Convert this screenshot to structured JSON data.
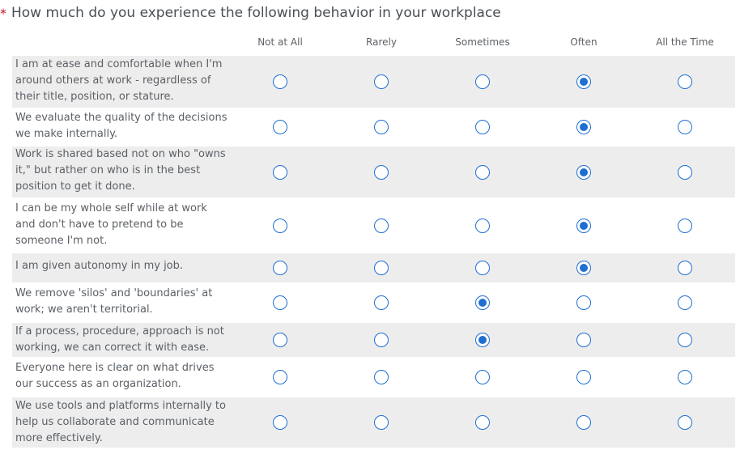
{
  "question": {
    "required_marker": "*",
    "text": "How much do you experience the following behavior in your workplace"
  },
  "columns": [
    "Not at All",
    "Rarely",
    "Sometimes",
    "Often",
    "All the Time"
  ],
  "rows": [
    {
      "label": "I am at ease and comfortable when I'm around others at work - regardless of their title, position, or stature.",
      "selected": "Often"
    },
    {
      "label": "We evaluate the quality of the decisions we make internally.",
      "selected": "Often"
    },
    {
      "label": "Work is shared based not on who \"owns it,\" but rather on who is in the best position to get it done.",
      "selected": "Often"
    },
    {
      "label": "I can be my whole self while at work and don't have to pretend to be someone I'm not.",
      "selected": "Often"
    },
    {
      "label": "I am given autonomy in my job.",
      "selected": "Often"
    },
    {
      "label": "We remove 'silos' and 'boundaries' at work; we aren't territorial.",
      "selected": "Sometimes"
    },
    {
      "label": "If a process, procedure, approach is not working, we can correct it with ease.",
      "selected": "Sometimes"
    },
    {
      "label": "Everyone here is clear on what drives our success as an organization.",
      "selected": null
    },
    {
      "label": "We use tools and platforms internally to help us collaborate and communicate more effectively.",
      "selected": null
    }
  ],
  "colors": {
    "accent": "#1f6fd1",
    "required": "#c8102e",
    "shaded_row": "#ededed"
  }
}
